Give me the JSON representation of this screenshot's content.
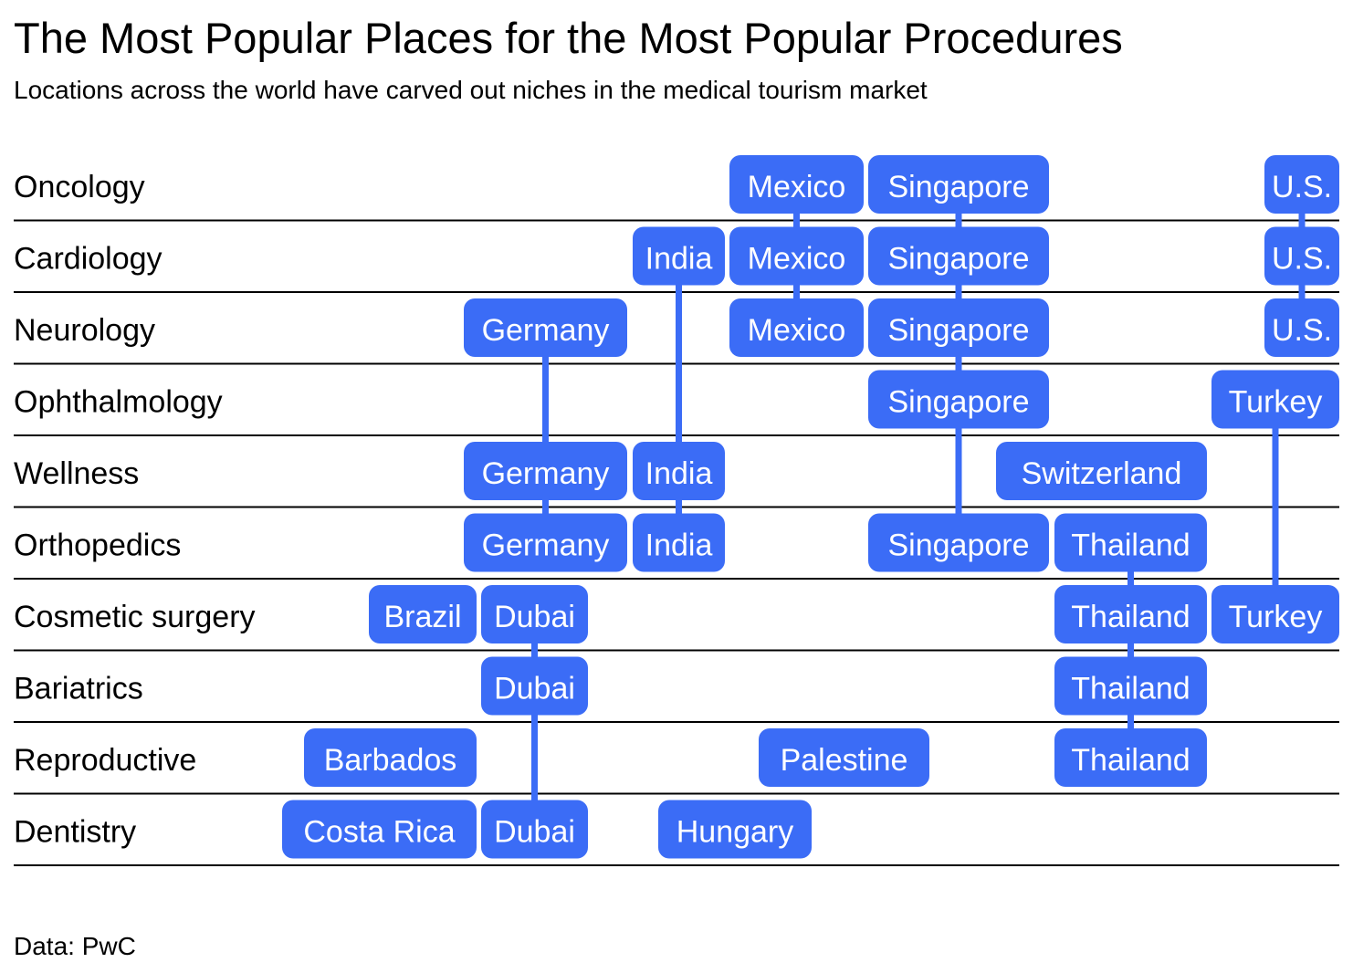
{
  "title": "The Most Popular Places for the Most Popular Procedures",
  "subtitle": "Locations across the world have carved out niches in the medical tourism market",
  "source": "Data: PwC",
  "colors": {
    "chip": "#3b6cf6",
    "connector": "#3b6cf6",
    "rule": "#000000",
    "chip_text": "#ffffff"
  },
  "chart_data": {
    "type": "table",
    "rows": [
      "Oncology",
      "Cardiology",
      "Neurology",
      "Ophthalmology",
      "Wellness",
      "Orthopedics",
      "Cosmetic surgery",
      "Bariatrics",
      "Reproductive",
      "Dentistry"
    ],
    "columns": [
      "Barbados",
      "Costa Rica",
      "Brazil",
      "Germany",
      "Dubai",
      "India",
      "Hungary",
      "Mexico",
      "Palestine",
      "Singapore",
      "Switzerland",
      "Thailand",
      "Turkey",
      "U.S."
    ],
    "entries": [
      {
        "location": "Mexico",
        "procedures": [
          "Oncology",
          "Cardiology",
          "Neurology"
        ]
      },
      {
        "location": "Singapore",
        "procedures": [
          "Oncology",
          "Cardiology",
          "Neurology",
          "Ophthalmology",
          "Orthopedics"
        ]
      },
      {
        "location": "U.S.",
        "procedures": [
          "Oncology",
          "Cardiology",
          "Neurology"
        ]
      },
      {
        "location": "India",
        "procedures": [
          "Cardiology",
          "Wellness",
          "Orthopedics"
        ]
      },
      {
        "location": "Germany",
        "procedures": [
          "Neurology",
          "Wellness",
          "Orthopedics"
        ]
      },
      {
        "location": "Turkey",
        "procedures": [
          "Ophthalmology",
          "Cosmetic surgery"
        ]
      },
      {
        "location": "Switzerland",
        "procedures": [
          "Wellness"
        ]
      },
      {
        "location": "Thailand",
        "procedures": [
          "Orthopedics",
          "Cosmetic surgery",
          "Bariatrics",
          "Reproductive"
        ]
      },
      {
        "location": "Brazil",
        "procedures": [
          "Cosmetic surgery"
        ]
      },
      {
        "location": "Dubai",
        "procedures": [
          "Cosmetic surgery",
          "Bariatrics",
          "Dentistry"
        ]
      },
      {
        "location": "Barbados",
        "procedures": [
          "Reproductive"
        ]
      },
      {
        "location": "Palestine",
        "procedures": [
          "Reproductive"
        ]
      },
      {
        "location": "Costa Rica",
        "procedures": [
          "Dentistry"
        ]
      },
      {
        "location": "Hungary",
        "procedures": [
          "Dentistry"
        ]
      }
    ]
  }
}
